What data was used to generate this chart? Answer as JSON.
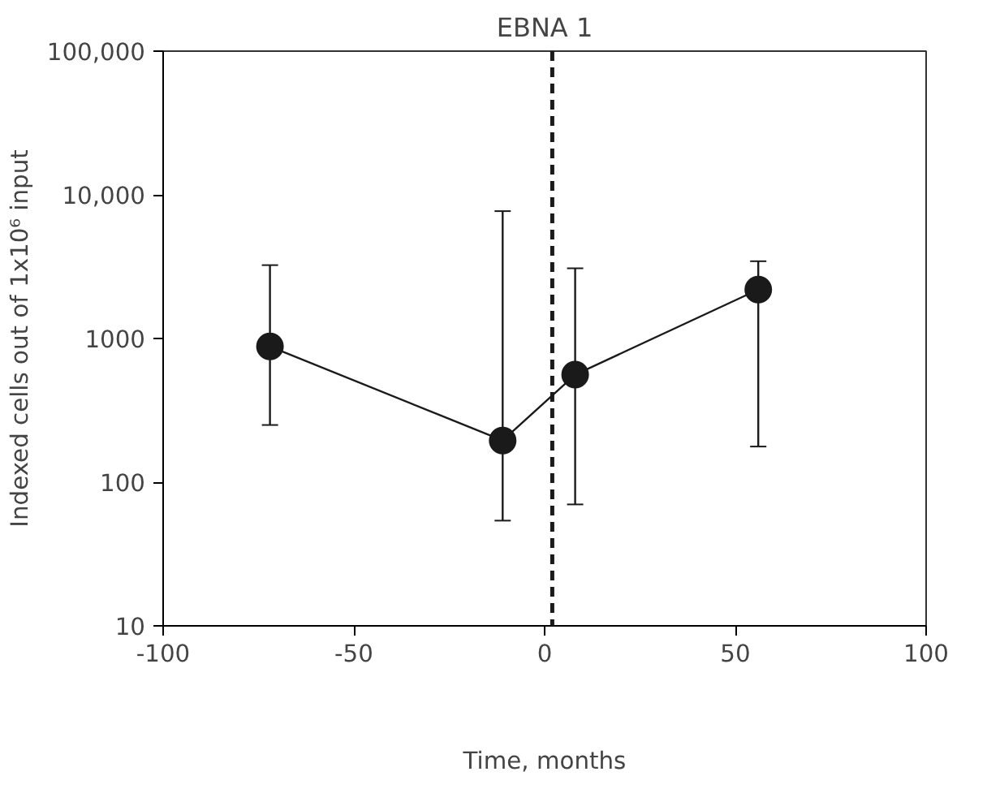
{
  "chart_data": {
    "type": "line",
    "title": "EBNA 1",
    "xlabel": "Time, months",
    "ylabel": "Indexed cells out of 1x10⁶ input",
    "x": [
      -72,
      -11,
      8,
      56
    ],
    "series": [
      {
        "color": "#1a1a1a",
        "values": [
          880,
          195,
          560,
          2190
        ],
        "errors": [
          [
            250,
            3240
          ],
          [
            54,
            7700
          ],
          [
            70,
            3080
          ],
          [
            177,
            3450
          ]
        ]
      }
    ],
    "xlim": [
      -100,
      100
    ],
    "xticks": [
      -100,
      -50,
      0,
      50,
      100
    ],
    "ylim": [
      10,
      100000
    ],
    "yticks": [
      {
        "value": 10,
        "label": "10"
      },
      {
        "value": 100,
        "label": "100"
      },
      {
        "value": 1000,
        "label": "1000"
      },
      {
        "value": 10000,
        "label": "10,000"
      },
      {
        "value": 100000,
        "label": "100,000"
      }
    ],
    "log": "y",
    "grid": false,
    "marker": "circle",
    "line_style": "solid",
    "ref_lines": [
      {
        "axis": "x",
        "value": 2,
        "line_style": "dashed",
        "color": "#1a1a1a"
      }
    ]
  }
}
